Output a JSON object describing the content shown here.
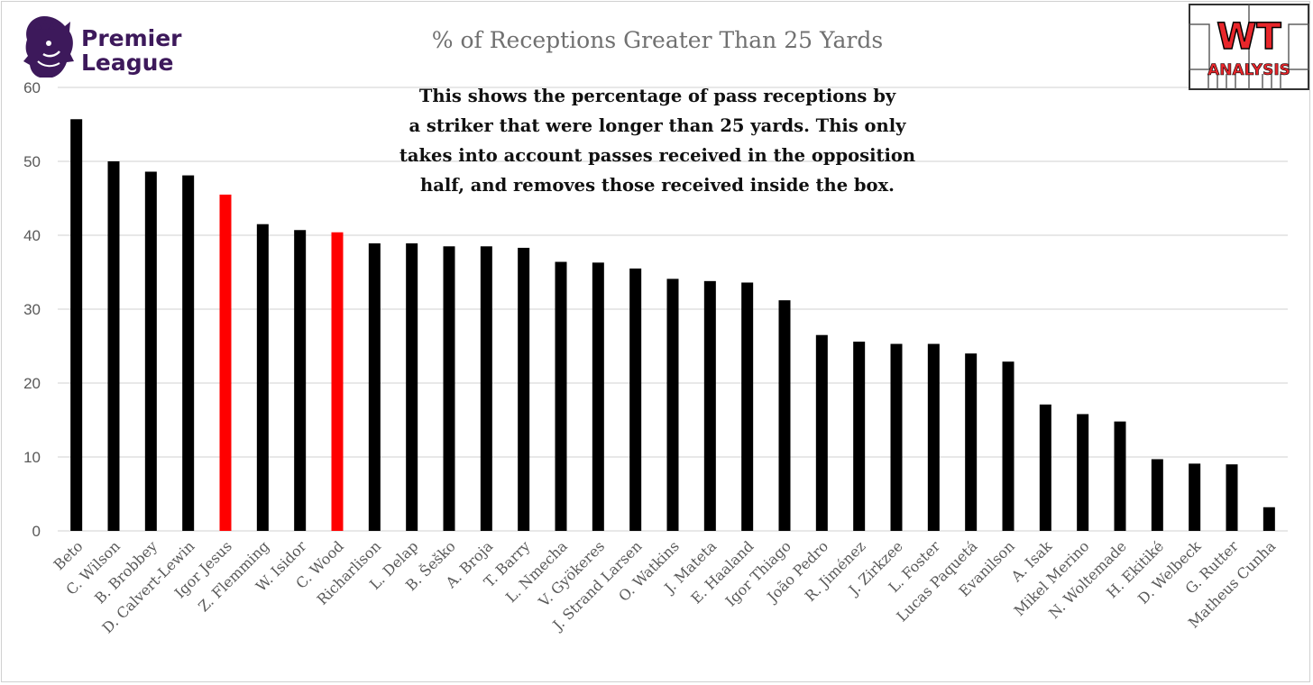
{
  "brand": {
    "league_line1": "Premier",
    "league_line2": "League",
    "badge_top": "WT",
    "badge_bottom": "ANALYSIS",
    "league_color": "#3d195b",
    "badge_red": "#e8262b"
  },
  "chart_data": {
    "type": "bar",
    "title": "% of Receptions Greater Than 25 Yards",
    "annotation": [
      "This shows the percentage of pass receptions by",
      "a striker that were longer than 25 yards. This only",
      "takes into account passes received in the opposition",
      "half, and removes those received inside the box."
    ],
    "xlabel": "",
    "ylabel": "",
    "ylim": [
      0,
      60
    ],
    "yticks": [
      0,
      10,
      20,
      30,
      40,
      50,
      60
    ],
    "grid": true,
    "legend": "none",
    "colors": {
      "default": "#000000",
      "highlight": "#ff0000",
      "grid": "#d9d9d9"
    },
    "categories": [
      "Beto",
      "C. Wilson",
      "B. Brobbey",
      "D. Calvert-Lewin",
      "Igor Jesus",
      "Z. Flemming",
      "W. Isidor",
      "C. Wood",
      "Richarlison",
      "L. Delap",
      "B. Šeško",
      "A. Broja",
      "T. Barry",
      "L. Nmecha",
      "V. Gyökeres",
      "J. Strand Larsen",
      "O. Watkins",
      "J. Mateta",
      "E. Haaland",
      "Igor Thiago",
      "João Pedro",
      "R. Jiménez",
      "J. Zirkzee",
      "L. Foster",
      "Lucas Paquetá",
      "Evanilson",
      "A. Isak",
      "Mikel Merino",
      "N. Woltemade",
      "H. Ekitiké",
      "D. Welbeck",
      "G. Rutter",
      "Matheus Cunha"
    ],
    "values": [
      55.7,
      50.0,
      48.6,
      48.1,
      45.5,
      41.5,
      40.7,
      40.4,
      38.9,
      38.9,
      38.5,
      38.5,
      38.3,
      36.4,
      36.3,
      35.5,
      34.1,
      33.8,
      33.6,
      31.2,
      26.5,
      25.6,
      25.3,
      25.3,
      24.0,
      22.9,
      17.1,
      15.8,
      14.8,
      9.7,
      9.1,
      9.0,
      3.2
    ],
    "highlighted": [
      "Igor Jesus",
      "C. Wood"
    ]
  }
}
